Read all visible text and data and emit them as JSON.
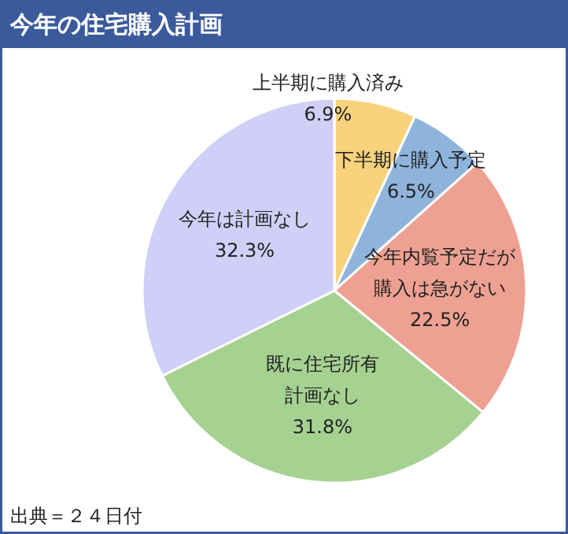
{
  "chart_data": {
    "type": "pie",
    "title": "今年の住宅購入計画",
    "categories": [
      "上半期に購入済み",
      "下半期に購入予定",
      "今年内覧予定だが購入は急がない",
      "既に住宅所有計画なし",
      "今年は計画なし"
    ],
    "values": [
      6.9,
      6.5,
      22.5,
      31.8,
      32.3
    ],
    "value_labels": [
      "6.9%",
      "6.5%",
      "22.5%",
      "31.8%",
      "32.3%"
    ],
    "colors": [
      "#f8d27c",
      "#8fb4dc",
      "#eea192",
      "#a5d191",
      "#cfcff7"
    ],
    "annotations": [
      "出典＝２４日付"
    ]
  }
}
